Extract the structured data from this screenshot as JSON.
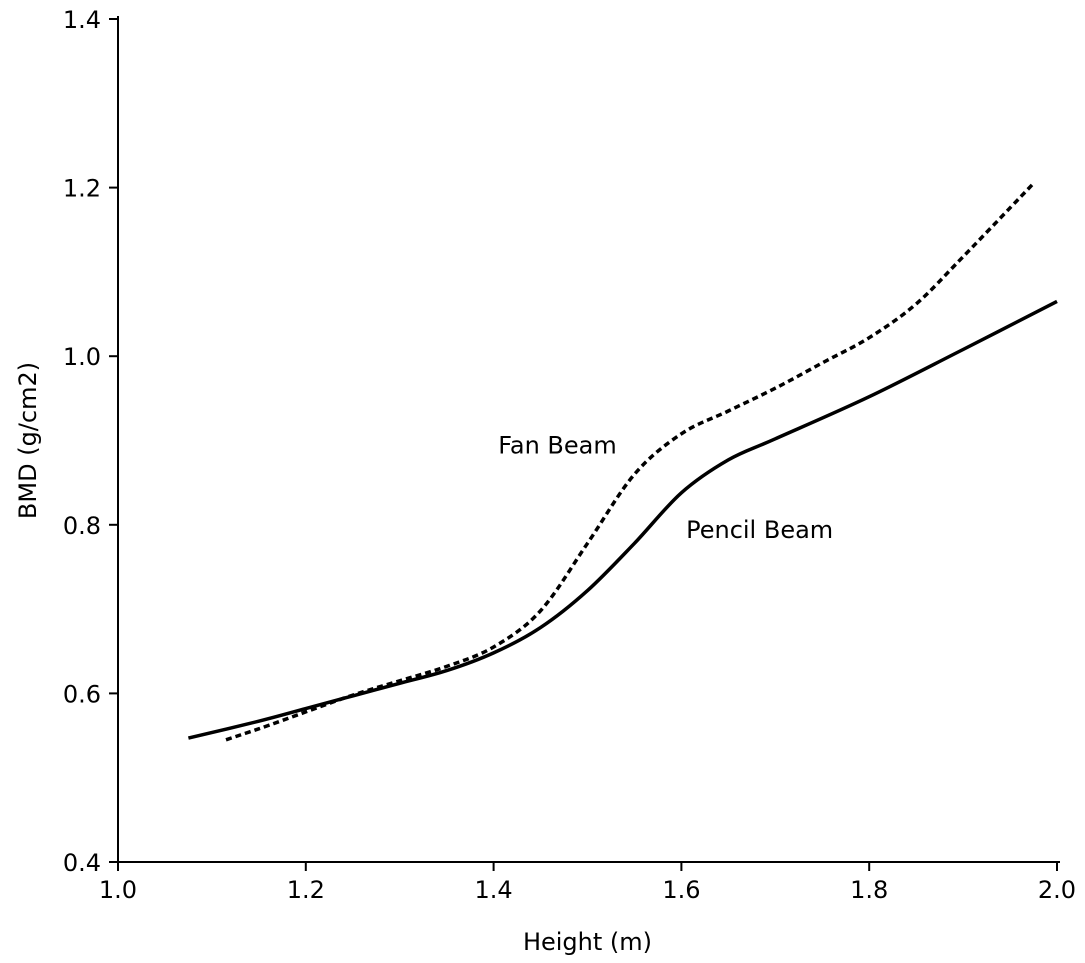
{
  "chart_data": {
    "type": "line",
    "title": "",
    "xlabel": "Height (m)",
    "ylabel": "BMD (g/cm2)",
    "xlim": [
      1.0,
      2.0
    ],
    "ylim": [
      0.4,
      1.4
    ],
    "xticks": [
      "1.0",
      "1.2",
      "1.4",
      "1.6",
      "1.8",
      "2.0"
    ],
    "yticks": [
      "0.4",
      "0.6",
      "0.8",
      "1.0",
      "1.2",
      "1.4"
    ],
    "grid": false,
    "series": [
      {
        "name": "Pencil Beam",
        "style": "solid",
        "color": "#000000",
        "x": [
          1.075,
          1.15,
          1.2,
          1.25,
          1.3,
          1.35,
          1.4,
          1.45,
          1.5,
          1.55,
          1.6,
          1.65,
          1.7,
          1.8,
          1.9,
          2.0
        ],
        "y": [
          0.547,
          0.567,
          0.582,
          0.597,
          0.612,
          0.627,
          0.648,
          0.678,
          0.722,
          0.778,
          0.838,
          0.877,
          0.902,
          0.952,
          1.008,
          1.065
        ]
      },
      {
        "name": "Fan Beam",
        "style": "dashed",
        "color": "#000000",
        "x": [
          1.115,
          1.15,
          1.2,
          1.25,
          1.3,
          1.35,
          1.4,
          1.45,
          1.5,
          1.55,
          1.6,
          1.65,
          1.7,
          1.75,
          1.8,
          1.85,
          1.9,
          1.975
        ],
        "y": [
          0.545,
          0.558,
          0.578,
          0.598,
          0.615,
          0.632,
          0.655,
          0.698,
          0.778,
          0.86,
          0.908,
          0.935,
          0.962,
          0.992,
          1.022,
          1.062,
          1.118,
          1.205
        ]
      }
    ],
    "annotations": [
      {
        "text": "Fan Beam",
        "x": 1.405,
        "y": 0.895
      },
      {
        "text": "Pencil Beam",
        "x": 1.605,
        "y": 0.795
      }
    ]
  }
}
